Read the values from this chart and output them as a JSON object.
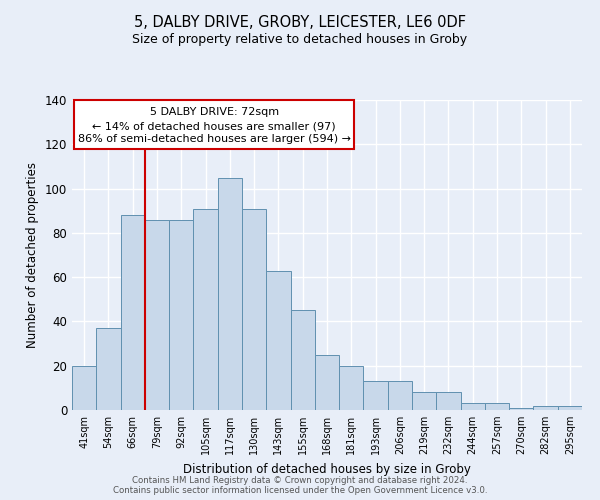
{
  "title1": "5, DALBY DRIVE, GROBY, LEICESTER, LE6 0DF",
  "title2": "Size of property relative to detached houses in Groby",
  "xlabel": "Distribution of detached houses by size in Groby",
  "ylabel": "Number of detached properties",
  "categories": [
    "41sqm",
    "54sqm",
    "66sqm",
    "79sqm",
    "92sqm",
    "105sqm",
    "117sqm",
    "130sqm",
    "143sqm",
    "155sqm",
    "168sqm",
    "181sqm",
    "193sqm",
    "206sqm",
    "219sqm",
    "232sqm",
    "244sqm",
    "257sqm",
    "270sqm",
    "282sqm",
    "295sqm"
  ],
  "values": [
    20,
    37,
    88,
    86,
    86,
    91,
    105,
    91,
    63,
    45,
    25,
    20,
    13,
    13,
    8,
    8,
    3,
    3,
    1,
    2,
    2
  ],
  "bar_color": "#c8d8ea",
  "bar_edge_color": "#6090b0",
  "background_color": "#e8eef8",
  "grid_color": "#ffffff",
  "red_line_x": 2.5,
  "annotation_text1": "5 DALBY DRIVE: 72sqm",
  "annotation_text2": "← 14% of detached houses are smaller (97)",
  "annotation_text3": "86% of semi-detached houses are larger (594) →",
  "annotation_box_color": "#ffffff",
  "annotation_box_edge_color": "#cc0000",
  "red_line_color": "#cc0000",
  "ylim": [
    0,
    140
  ],
  "yticks": [
    0,
    20,
    40,
    60,
    80,
    100,
    120,
    140
  ],
  "footer1": "Contains HM Land Registry data © Crown copyright and database right 2024.",
  "footer2": "Contains public sector information licensed under the Open Government Licence v3.0."
}
